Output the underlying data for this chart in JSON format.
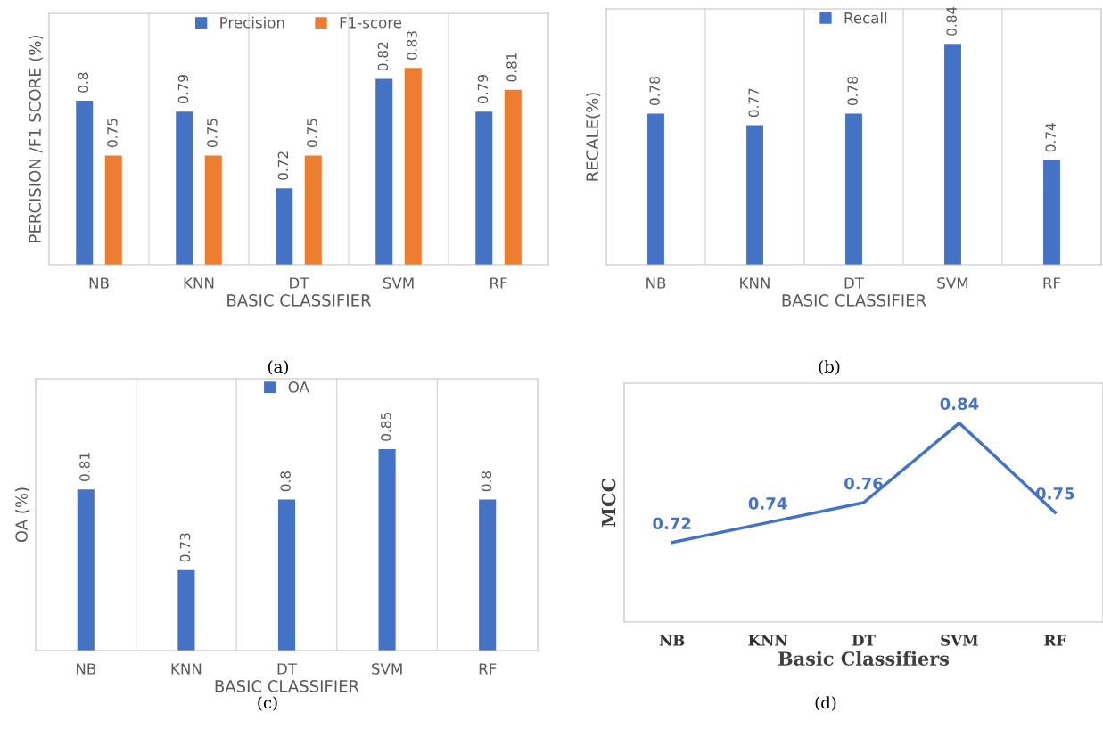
{
  "chart_data": [
    {
      "type": "bar",
      "categories": [
        "NB",
        "KNN",
        "DT",
        "SVM",
        "RF"
      ],
      "xlabel": "BASIC CLASSIFIER",
      "ylabel": "PERCISION /F1 SCORE (%)",
      "ylim": [
        0.65,
        0.88
      ],
      "tick_labels": "x",
      "grid": "x",
      "legend": "top",
      "data_labels": true,
      "annotations": [
        "(a)"
      ],
      "series": [
        {
          "name": "Precision",
          "color": "#4472c4",
          "values": [
            0.8,
            0.79,
            0.72,
            0.82,
            0.79
          ]
        },
        {
          "name": "F1-score",
          "color": "#ed7d31",
          "values": [
            0.75,
            0.75,
            0.75,
            0.83,
            0.81
          ]
        }
      ]
    },
    {
      "type": "bar",
      "categories": [
        "NB",
        "KNN",
        "DT",
        "SVM",
        "RF"
      ],
      "xlabel": "BASIC CLASSIFIER",
      "ylabel": "RECALE(%)",
      "ylim": [
        0.65,
        0.87
      ],
      "tick_labels": "x",
      "grid": "x",
      "legend": "top",
      "data_labels": true,
      "annotations": [
        "(b)"
      ],
      "series": [
        {
          "name": "Recall",
          "color": "#4472c4",
          "values": [
            0.78,
            0.77,
            0.78,
            0.84,
            0.74
          ]
        }
      ]
    },
    {
      "type": "bar",
      "categories": [
        "NB",
        "KNN",
        "DT",
        "SVM",
        "RF"
      ],
      "xlabel": "BASIC CLASSIFIER",
      "ylabel": "OA (%)",
      "ylim": [
        0.65,
        0.92
      ],
      "tick_labels": "x",
      "grid": "x",
      "legend": "top",
      "data_labels": true,
      "annotations": [
        "(c)"
      ],
      "series": [
        {
          "name": "OA",
          "color": "#4472c4",
          "values": [
            0.81,
            0.73,
            0.8,
            0.85,
            0.8
          ]
        }
      ]
    },
    {
      "type": "line",
      "categories": [
        "NB",
        "KNN",
        "DT",
        "SVM",
        "RF"
      ],
      "xlabel": "Basic Classifiers",
      "ylabel": "MCC",
      "ylim": [
        0.64,
        0.88
      ],
      "tick_labels": "x",
      "grid": false,
      "legend": false,
      "data_labels": true,
      "annotations": [
        "(d)"
      ],
      "series": [
        {
          "color": "#4472c4",
          "values": [
            0.72,
            0.74,
            0.76,
            0.84,
            0.75
          ]
        }
      ]
    }
  ]
}
